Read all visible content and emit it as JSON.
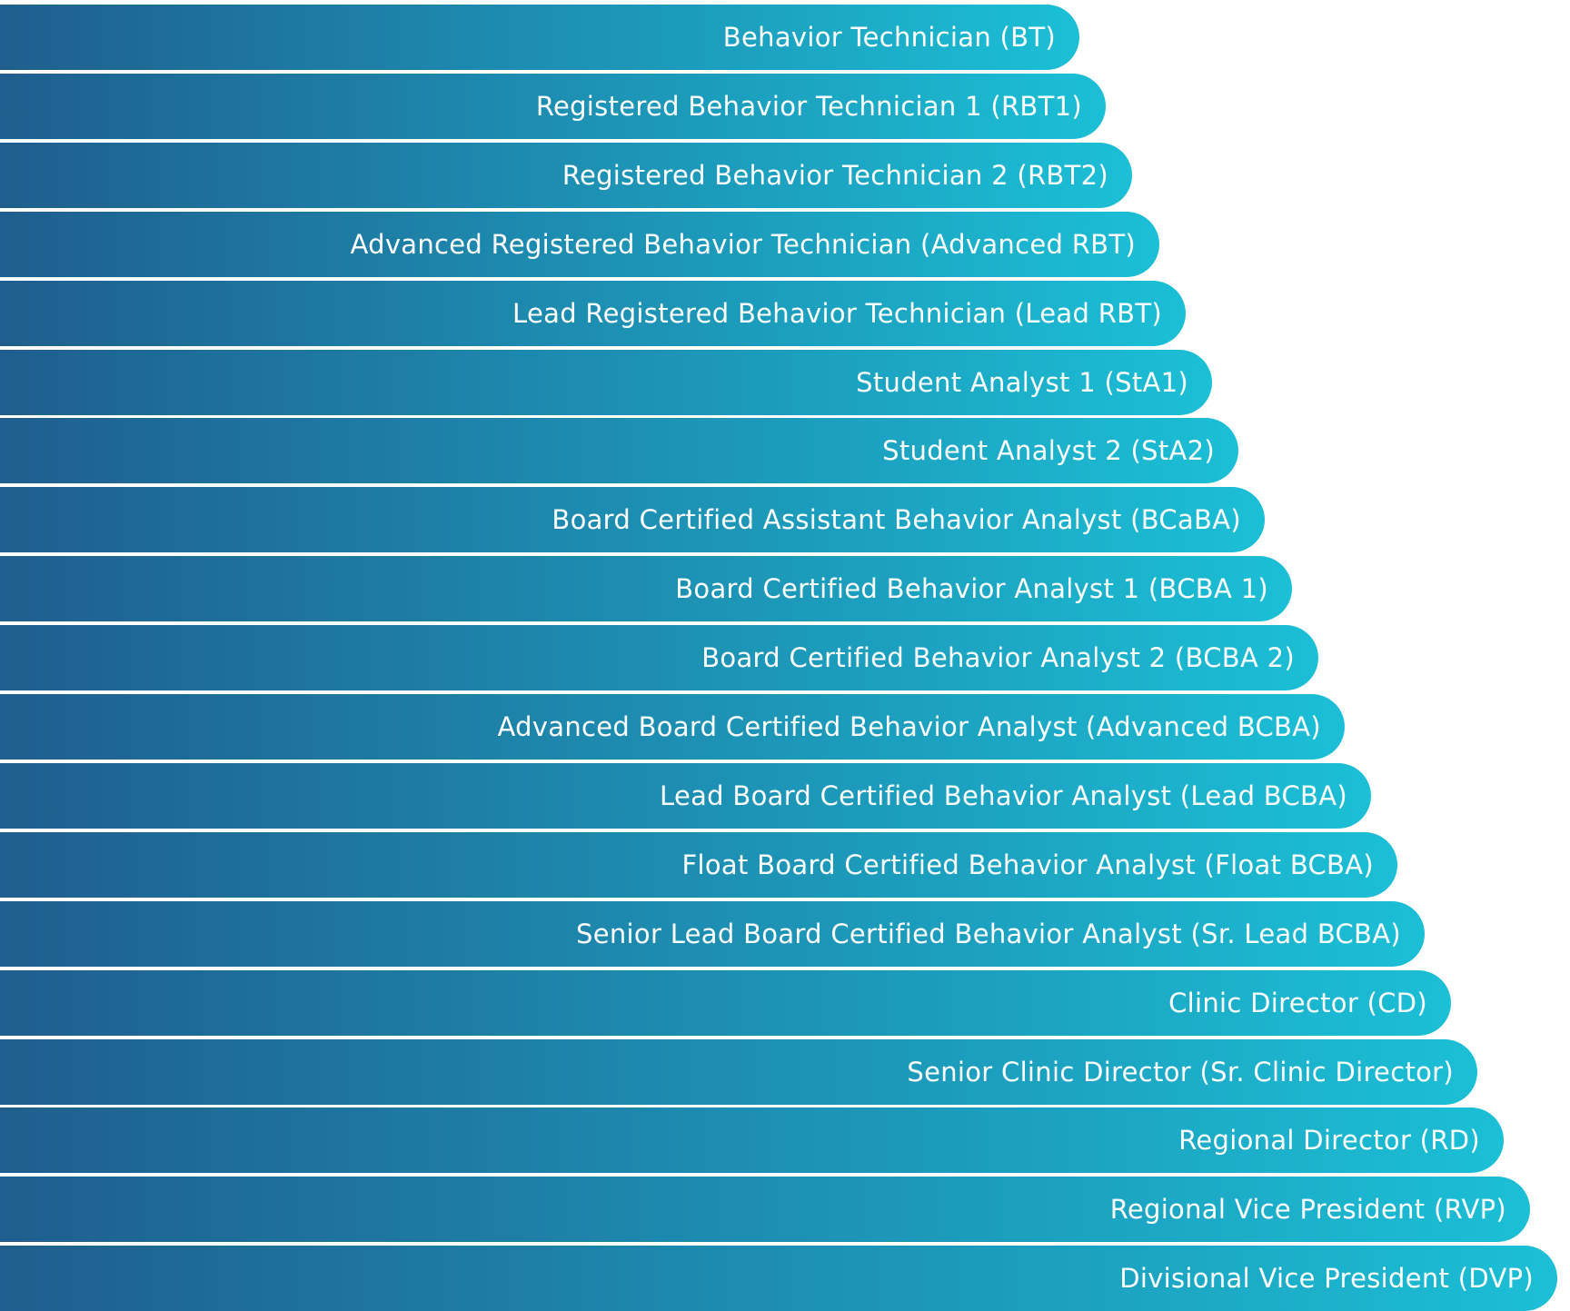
{
  "colors": {
    "bar_start": "#1f5e8e",
    "bar_end": "#1bbfd6",
    "background": "#ffffff",
    "text": "#ffffff"
  },
  "levels": [
    "Behavior Technician (BT)",
    "Registered Behavior Technician 1 (RBT1)",
    "Registered Behavior Technician 2 (RBT2)",
    "Advanced Registered Behavior Technician (Advanced RBT)",
    "Lead Registered Behavior Technician (Lead RBT)",
    "Student Analyst 1 (StA1)",
    "Student Analyst 2 (StA2)",
    "Board Certified Assistant Behavior Analyst (BCaBA)",
    "Board Certified Behavior Analyst 1 (BCBA 1)",
    "Board Certified Behavior Analyst 2 (BCBA 2)",
    "Advanced Board Certified Behavior Analyst (Advanced BCBA)",
    "Lead Board Certified Behavior Analyst (Lead BCBA)",
    "Float Board Certified Behavior Analyst (Float BCBA)",
    "Senior Lead Board Certified Behavior Analyst (Sr. Lead BCBA)",
    "Clinic Director (CD)",
    "Senior Clinic Director (Sr. Clinic Director)",
    "Regional Director (RD)",
    "Regional Vice President (RVP)",
    "Divisional Vice President (DVP)"
  ]
}
